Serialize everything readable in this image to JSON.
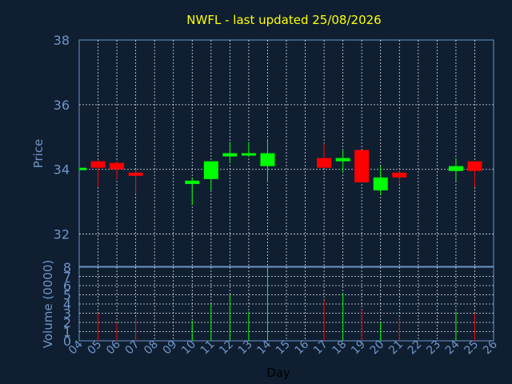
{
  "chart_data": [
    {
      "type": "candlestick",
      "title": "NWFL - last updated 25/08/2026",
      "ylabel": "Price",
      "ylim": [
        31,
        38
      ],
      "yticks": [
        "32",
        "34",
        "36",
        "38"
      ],
      "grid": true,
      "colors": {
        "up": "#00ff00",
        "down": "#ff0000",
        "title": "#ffff00",
        "axis_text": "#6f95c8",
        "xlabel": "#000000"
      },
      "candles": [
        {
          "day": 4.0,
          "open": 34.0,
          "high": 34.05,
          "low": 33.95,
          "close": 34.05
        },
        {
          "day": 5.0,
          "open": 34.25,
          "high": 34.3,
          "low": 33.45,
          "close": 34.05
        },
        {
          "day": 6.0,
          "open": 34.2,
          "high": 34.25,
          "low": 33.7,
          "close": 34.0
        },
        {
          "day": 7.0,
          "open": 33.9,
          "high": 34.0,
          "low": 33.25,
          "close": 33.8
        },
        {
          "day": 10.0,
          "open": 33.55,
          "high": 33.75,
          "low": 32.9,
          "close": 33.65
        },
        {
          "day": 11.0,
          "open": 33.7,
          "high": 34.25,
          "low": 33.35,
          "close": 34.25
        },
        {
          "day": 12.0,
          "open": 34.4,
          "high": 34.85,
          "low": 34.2,
          "close": 34.5
        },
        {
          "day": 13.0,
          "open": 34.45,
          "high": 34.85,
          "low": 34.4,
          "close": 34.5
        },
        {
          "day": 14.0,
          "open": 34.1,
          "high": 34.9,
          "low": 33.6,
          "close": 34.5
        },
        {
          "day": 17.0,
          "open": 34.35,
          "high": 34.8,
          "low": 34.05,
          "close": 34.05
        },
        {
          "day": 18.0,
          "open": 34.25,
          "high": 34.6,
          "low": 33.9,
          "close": 34.35
        },
        {
          "day": 19.0,
          "open": 34.6,
          "high": 34.6,
          "low": 33.6,
          "close": 33.6
        },
        {
          "day": 20.0,
          "open": 33.35,
          "high": 34.1,
          "low": 33.2,
          "close": 33.75
        },
        {
          "day": 21.0,
          "open": 33.9,
          "high": 34.0,
          "low": 33.55,
          "close": 33.75
        },
        {
          "day": 24.0,
          "open": 33.95,
          "high": 34.35,
          "low": 33.65,
          "close": 34.1
        },
        {
          "day": 25.0,
          "open": 34.25,
          "high": 34.25,
          "low": 33.45,
          "close": 33.95
        }
      ]
    },
    {
      "type": "bar",
      "ylabel": "Volume (0000)",
      "xlabel": "Day",
      "ylim": [
        0,
        8
      ],
      "yticks": [
        "0",
        "1",
        "2",
        "3",
        "4",
        "5",
        "6",
        "7",
        "8"
      ],
      "xlim": [
        4,
        26
      ],
      "xticks": [
        "04",
        "05",
        "06",
        "07",
        "08",
        "09",
        "10",
        "11",
        "12",
        "13",
        "14",
        "15",
        "16",
        "17",
        "18",
        "19",
        "20",
        "21",
        "22",
        "23",
        "24",
        "25",
        "26"
      ],
      "bars": [
        {
          "day": 4.0,
          "value": 0.1,
          "direction": "up"
        },
        {
          "day": 5.0,
          "value": 3.0,
          "direction": "down"
        },
        {
          "day": 6.0,
          "value": 2.0,
          "direction": "down"
        },
        {
          "day": 7.0,
          "value": 2.5,
          "direction": "down"
        },
        {
          "day": 10.0,
          "value": 2.2,
          "direction": "up"
        },
        {
          "day": 11.0,
          "value": 4.0,
          "direction": "up"
        },
        {
          "day": 12.0,
          "value": 5.0,
          "direction": "up"
        },
        {
          "day": 13.0,
          "value": 3.2,
          "direction": "up"
        },
        {
          "day": 14.0,
          "value": 8.0,
          "direction": "up"
        },
        {
          "day": 17.0,
          "value": 4.4,
          "direction": "down"
        },
        {
          "day": 18.0,
          "value": 5.2,
          "direction": "up"
        },
        {
          "day": 19.0,
          "value": 3.4,
          "direction": "down"
        },
        {
          "day": 20.0,
          "value": 2.0,
          "direction": "up"
        },
        {
          "day": 21.0,
          "value": 2.5,
          "direction": "down"
        },
        {
          "day": 24.0,
          "value": 3.2,
          "direction": "up"
        },
        {
          "day": 25.0,
          "value": 3.0,
          "direction": "down"
        }
      ]
    }
  ]
}
